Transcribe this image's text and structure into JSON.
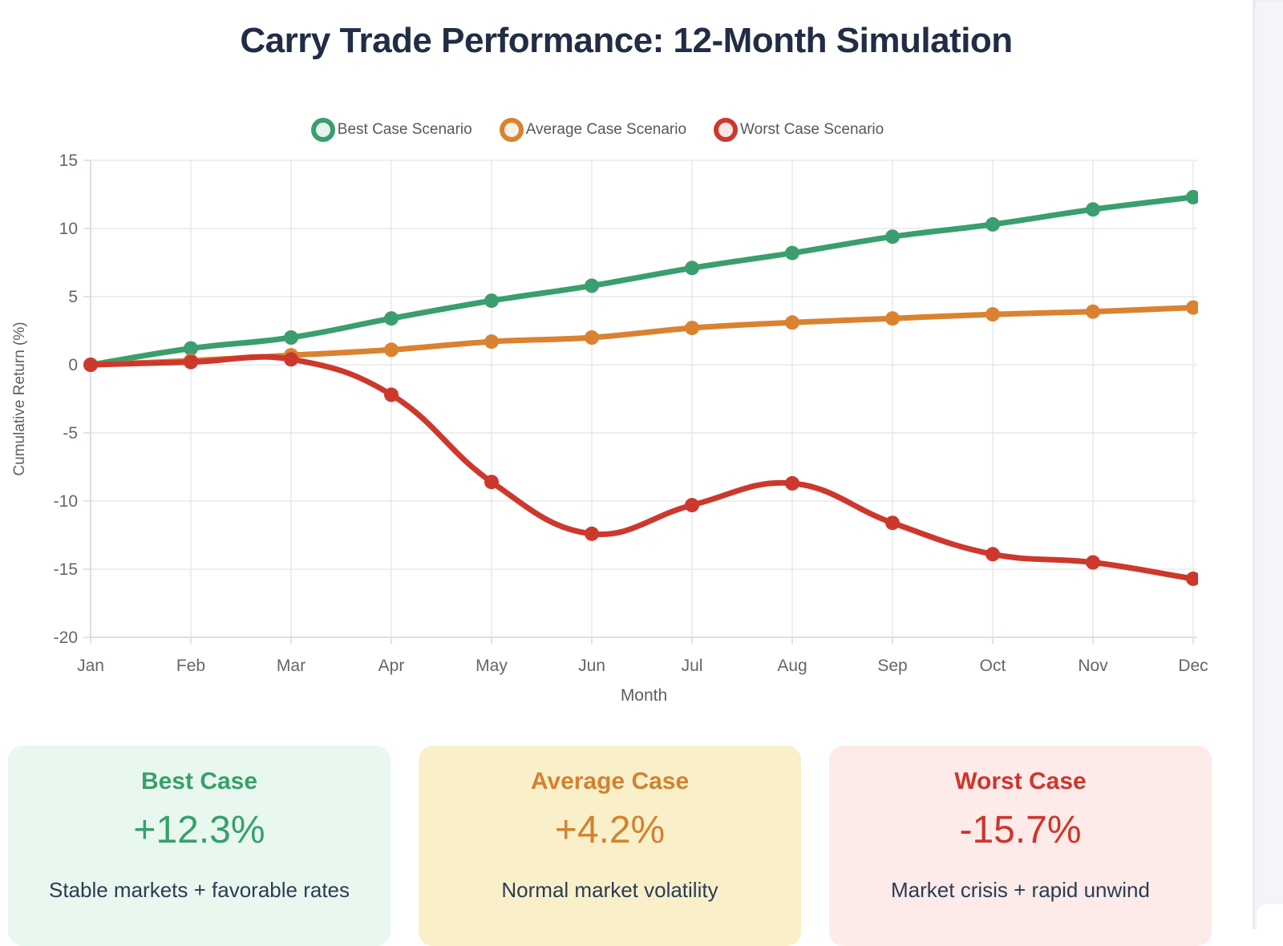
{
  "page": {
    "title": "Carry Trade Performance: 12-Month Simulation",
    "title_color": "#212d45",
    "background_color": "#ffffff",
    "side_strip_color": "#f3f5f9"
  },
  "chart_data": {
    "type": "line",
    "title": "Carry Trade Performance: 12-Month Simulation",
    "xlabel": "Month",
    "ylabel": "Cumulative Return (%)",
    "categories": [
      "Jan",
      "Feb",
      "Mar",
      "Apr",
      "May",
      "Jun",
      "Jul",
      "Aug",
      "Sep",
      "Oct",
      "Nov",
      "Dec"
    ],
    "ylim": [
      -20,
      15
    ],
    "yticks": [
      15,
      10,
      5,
      0,
      -5,
      -10,
      -15,
      -20
    ],
    "grid": true,
    "legend_position": "top",
    "curve": "smooth",
    "tick_color": "#63676c",
    "axis_title_color": "#5b5f64",
    "grid_color": "#e7e9ec",
    "series": [
      {
        "name": "Best Case Scenario",
        "color": "#3a9e6e",
        "values": [
          0,
          1.2,
          2.0,
          3.4,
          4.7,
          5.8,
          7.1,
          8.2,
          9.4,
          10.3,
          11.4,
          12.3
        ]
      },
      {
        "name": "Average Case Scenario",
        "color": "#da8231",
        "values": [
          0,
          0.3,
          0.7,
          1.1,
          1.7,
          2.0,
          2.7,
          3.1,
          3.4,
          3.7,
          3.9,
          4.2
        ]
      },
      {
        "name": "Worst Case Scenario",
        "color": "#cd382d",
        "values": [
          0,
          0.2,
          0.4,
          -2.2,
          -8.6,
          -12.4,
          -10.3,
          -8.7,
          -11.6,
          -13.9,
          -14.5,
          -15.7
        ]
      }
    ]
  },
  "summary": {
    "description_color": "#2b3c55",
    "cards": [
      {
        "label": "Best Case",
        "value": "+12.3%",
        "description": "Stable markets + favorable rates",
        "accent": "#37a06b",
        "background": "#e9f8ef"
      },
      {
        "label": "Average Case",
        "value": "+4.2%",
        "description": "Normal market volatility",
        "accent": "#d28230",
        "background": "#f9f0ca"
      },
      {
        "label": "Worst Case",
        "value": "-15.7%",
        "description": "Market crisis + rapid unwind",
        "accent": "#cd362d",
        "background": "#fcebe8"
      }
    ]
  }
}
